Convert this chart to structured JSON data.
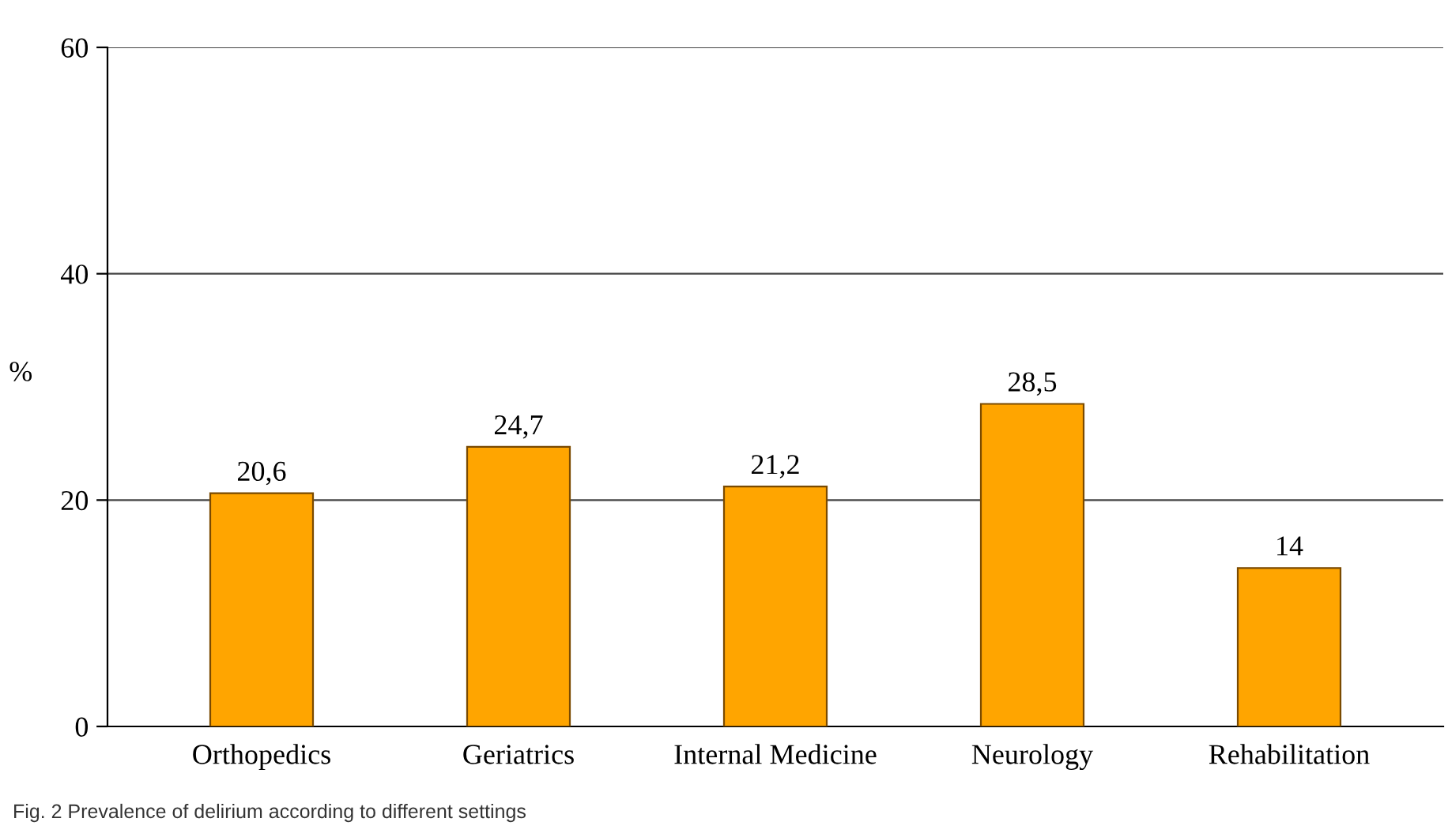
{
  "chart_data": {
    "type": "bar",
    "ylabel": "%",
    "categories": [
      "Orthopedics",
      "Geriatrics",
      "Internal Medicine",
      "Neurology",
      "Rehabilitation"
    ],
    "values": [
      20.6,
      24.7,
      21.2,
      28.5,
      14
    ],
    "value_labels": [
      "20,6",
      "24,7",
      "21,2",
      "28,5",
      "14"
    ],
    "color": "#ffa500",
    "ylim": [
      0,
      60
    ],
    "yticks": [
      0,
      20,
      40,
      60
    ],
    "grid": "y",
    "annotations": [
      "Fig. 2 Prevalence of delirium according to different settings"
    ]
  }
}
